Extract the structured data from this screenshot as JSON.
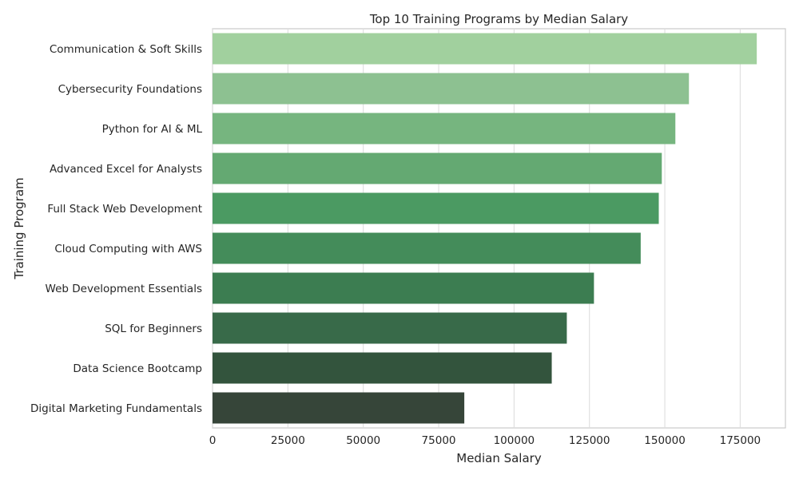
{
  "chart_data": {
    "type": "bar",
    "orientation": "horizontal",
    "title": "Top 10 Training Programs by Median Salary",
    "xlabel": "Median Salary",
    "ylabel": "Training Program",
    "xlim": [
      0,
      190000
    ],
    "x_ticks": [
      0,
      25000,
      50000,
      75000,
      100000,
      125000,
      150000,
      175000
    ],
    "x_tick_labels": [
      "0",
      "25000",
      "50000",
      "75000",
      "100000",
      "125000",
      "150000",
      "175000"
    ],
    "grid": "on (vertical)",
    "categories": [
      "Communication & Soft Skills",
      "Cybersecurity Foundations",
      "Python for AI & ML",
      "Advanced Excel for Analysts",
      "Full Stack Web Development",
      "Cloud Computing with AWS",
      "Web Development Essentials",
      "SQL for Beginners",
      "Data Science Bootcamp",
      "Digital Marketing Fundamentals"
    ],
    "values": [
      180500,
      158000,
      153500,
      149000,
      148000,
      142000,
      126500,
      117500,
      112500,
      83500
    ],
    "colors": [
      "#a1d09e",
      "#8dc191",
      "#76b57f",
      "#64a972",
      "#4b9a62",
      "#448c5a",
      "#3c7d51",
      "#386a49",
      "#33543d",
      "#364539"
    ]
  }
}
